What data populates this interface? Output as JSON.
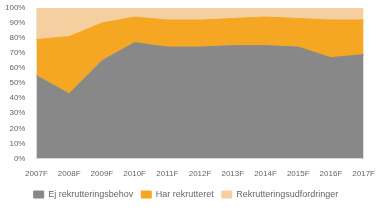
{
  "chart_data": {
    "type": "area",
    "categories": [
      "2007F",
      "2008F",
      "2009F",
      "2010F",
      "2011F",
      "2012F",
      "2013F",
      "2014F",
      "2015F",
      "2016F",
      "2017F"
    ],
    "series": [
      {
        "name": "Ej rekrutteringsbehov",
        "color": "#888888",
        "values": [
          55,
          43,
          65,
          77,
          74,
          74,
          75,
          75,
          74,
          67,
          69
        ]
      },
      {
        "name": "Har rekrutteret",
        "color": "#F5A623",
        "values": [
          24,
          38,
          25,
          17,
          18,
          18,
          18,
          19,
          19,
          25,
          23
        ]
      },
      {
        "name": "Rekrutteringsudfordringer",
        "color": "#F5CFA0",
        "values": [
          21,
          19,
          10,
          6,
          8,
          8,
          7,
          6,
          7,
          8,
          8
        ]
      }
    ],
    "stacked": true,
    "ylim": [
      0,
      100
    ],
    "yticks": [
      {
        "value": 0,
        "label": "0%"
      },
      {
        "value": 10,
        "label": "10%"
      },
      {
        "value": 20,
        "label": "20%"
      },
      {
        "value": 30,
        "label": "30%"
      },
      {
        "value": 40,
        "label": "40%"
      },
      {
        "value": 50,
        "label": "50%"
      },
      {
        "value": 60,
        "label": "60%"
      },
      {
        "value": 70,
        "label": "70%"
      },
      {
        "value": 80,
        "label": "80%"
      },
      {
        "value": 90,
        "label": "90%"
      },
      {
        "value": 100,
        "label": "100%"
      }
    ],
    "grid": false,
    "legend": "bottom"
  }
}
